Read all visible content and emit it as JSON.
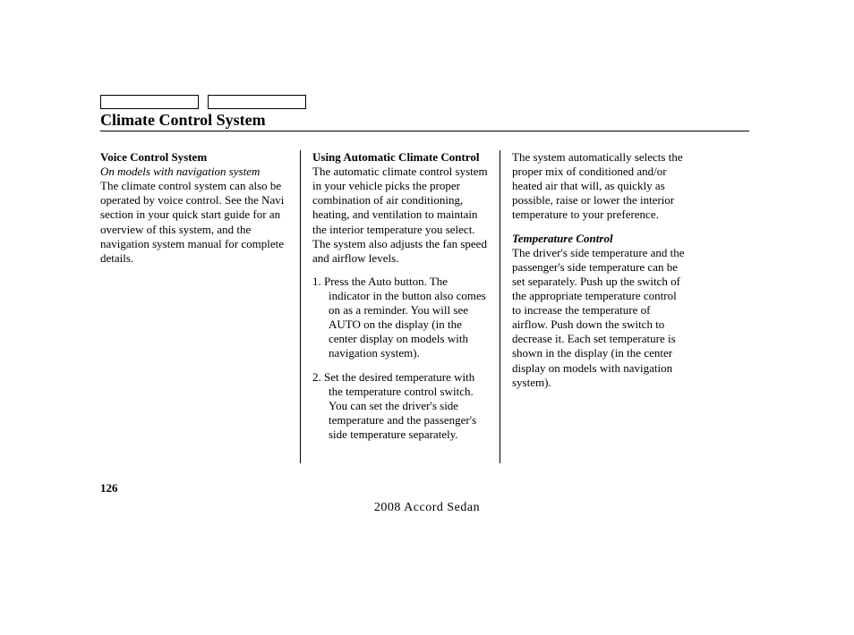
{
  "title": "Climate Control System",
  "page_number": "126",
  "footer": "2008  Accord  Sedan",
  "col1": {
    "heading": "Voice Control System",
    "note": "On models with navigation system",
    "body": "The climate control system can also be operated by voice control. See the Navi section in your quick start guide for an overview of this system, and the navigation system manual for complete details."
  },
  "col2": {
    "heading": "Using Automatic Climate Control",
    "intro": "The automatic climate control system in your vehicle picks the proper combination of air conditioning, heating, and ventilation to maintain the interior temperature you select. The system also adjusts the fan speed and airflow levels.",
    "step1": "Press the Auto button. The indicator in the button also comes on as a reminder. You will see AUTO on the display (in the center display on models with navigation system).",
    "step2": "Set the desired temperature with the temperature control switch. You can set the driver's side temperature and the passenger's side temperature separately."
  },
  "col3": {
    "top": "The system automatically selects the proper mix of conditioned and/or heated air that will, as quickly as possible, raise or lower the interior temperature to your preference.",
    "subheading": "Temperature Control",
    "body": "The driver's side temperature and the passenger's side temperature can be set separately. Push up the switch of the appropriate temperature control to increase the temperature of airflow. Push down the switch to decrease it. Each set temperature is shown in the display (in the center display on models with navigation system)."
  }
}
